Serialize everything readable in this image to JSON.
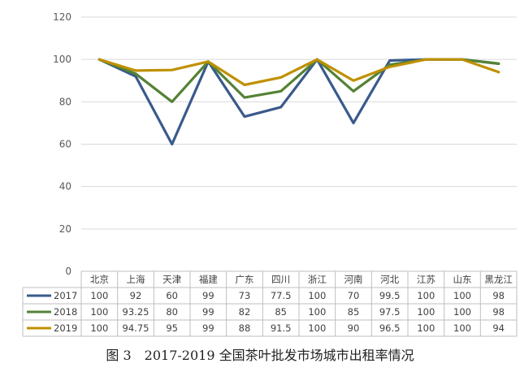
{
  "caption": "图 3　2017-2019 全国茶叶批发市场城市出租率情况",
  "chart_data": {
    "type": "line",
    "categories": [
      "北京",
      "上海",
      "天津",
      "福建",
      "广东",
      "四川",
      "浙江",
      "河南",
      "河北",
      "江苏",
      "山东",
      "黑龙江"
    ],
    "ylim": [
      0,
      120
    ],
    "yticks": [
      0,
      20,
      40,
      60,
      80,
      100,
      120
    ],
    "grid": true,
    "legend": "data table rows",
    "series": [
      {
        "name": "2017",
        "color": "#3a5a8c",
        "values": [
          100,
          92,
          60,
          99,
          73,
          77.5,
          100,
          70,
          99.5,
          100,
          100,
          98
        ],
        "labels": [
          "100",
          "92",
          "60",
          "99",
          "73",
          "77.5",
          "100",
          "70",
          "99.5",
          "100",
          "100",
          "98"
        ]
      },
      {
        "name": "2018",
        "color": "#548235",
        "values": [
          100,
          93.25,
          80,
          99,
          82,
          85,
          100,
          85,
          97.5,
          100,
          100,
          98
        ],
        "labels": [
          "100",
          "93.25",
          "80",
          "99",
          "82",
          "85",
          "100",
          "85",
          "97.5",
          "100",
          "100",
          "98"
        ]
      },
      {
        "name": "2019",
        "color": "#bf9000",
        "values": [
          100,
          94.75,
          95,
          99,
          88,
          91.5,
          100,
          90,
          96.5,
          100,
          100,
          94
        ],
        "labels": [
          "100",
          "94.75",
          "95",
          "99",
          "88",
          "91.5",
          "100",
          "90",
          "96.5",
          "100",
          "100",
          "94"
        ]
      }
    ]
  }
}
